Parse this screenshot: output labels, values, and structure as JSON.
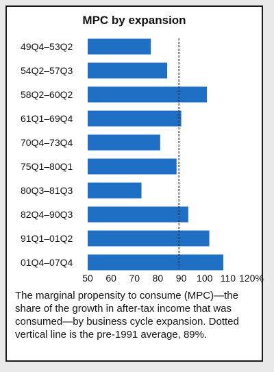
{
  "chart_data": {
    "type": "bar",
    "orientation": "horizontal",
    "title": "MPC by expansion",
    "categories": [
      "49Q4–53Q2",
      "54Q2–57Q3",
      "58Q2–60Q2",
      "61Q1–69Q4",
      "70Q4–73Q4",
      "75Q1–80Q1",
      "80Q3–81Q3",
      "82Q4–90Q3",
      "91Q1–01Q2",
      "01Q4–07Q4"
    ],
    "values": [
      77,
      84,
      101,
      90,
      81,
      88,
      73,
      93,
      102,
      108
    ],
    "xlim": [
      50,
      120
    ],
    "xticks": [
      50,
      60,
      70,
      80,
      90,
      100,
      110,
      120
    ],
    "xtick_labels": [
      "50",
      "60",
      "70",
      "80",
      "90",
      "100",
      "110",
      "120%"
    ],
    "reference_line": {
      "value": 89,
      "style": "dotted"
    },
    "bar_color": "#1f6fc5",
    "grid": false
  },
  "caption": "The marginal propensity to consume (MPC)—the share of the growth in after-tax income that was consumed—by business cycle expansion. Dotted vertical line is the pre-1991 average, 89%."
}
